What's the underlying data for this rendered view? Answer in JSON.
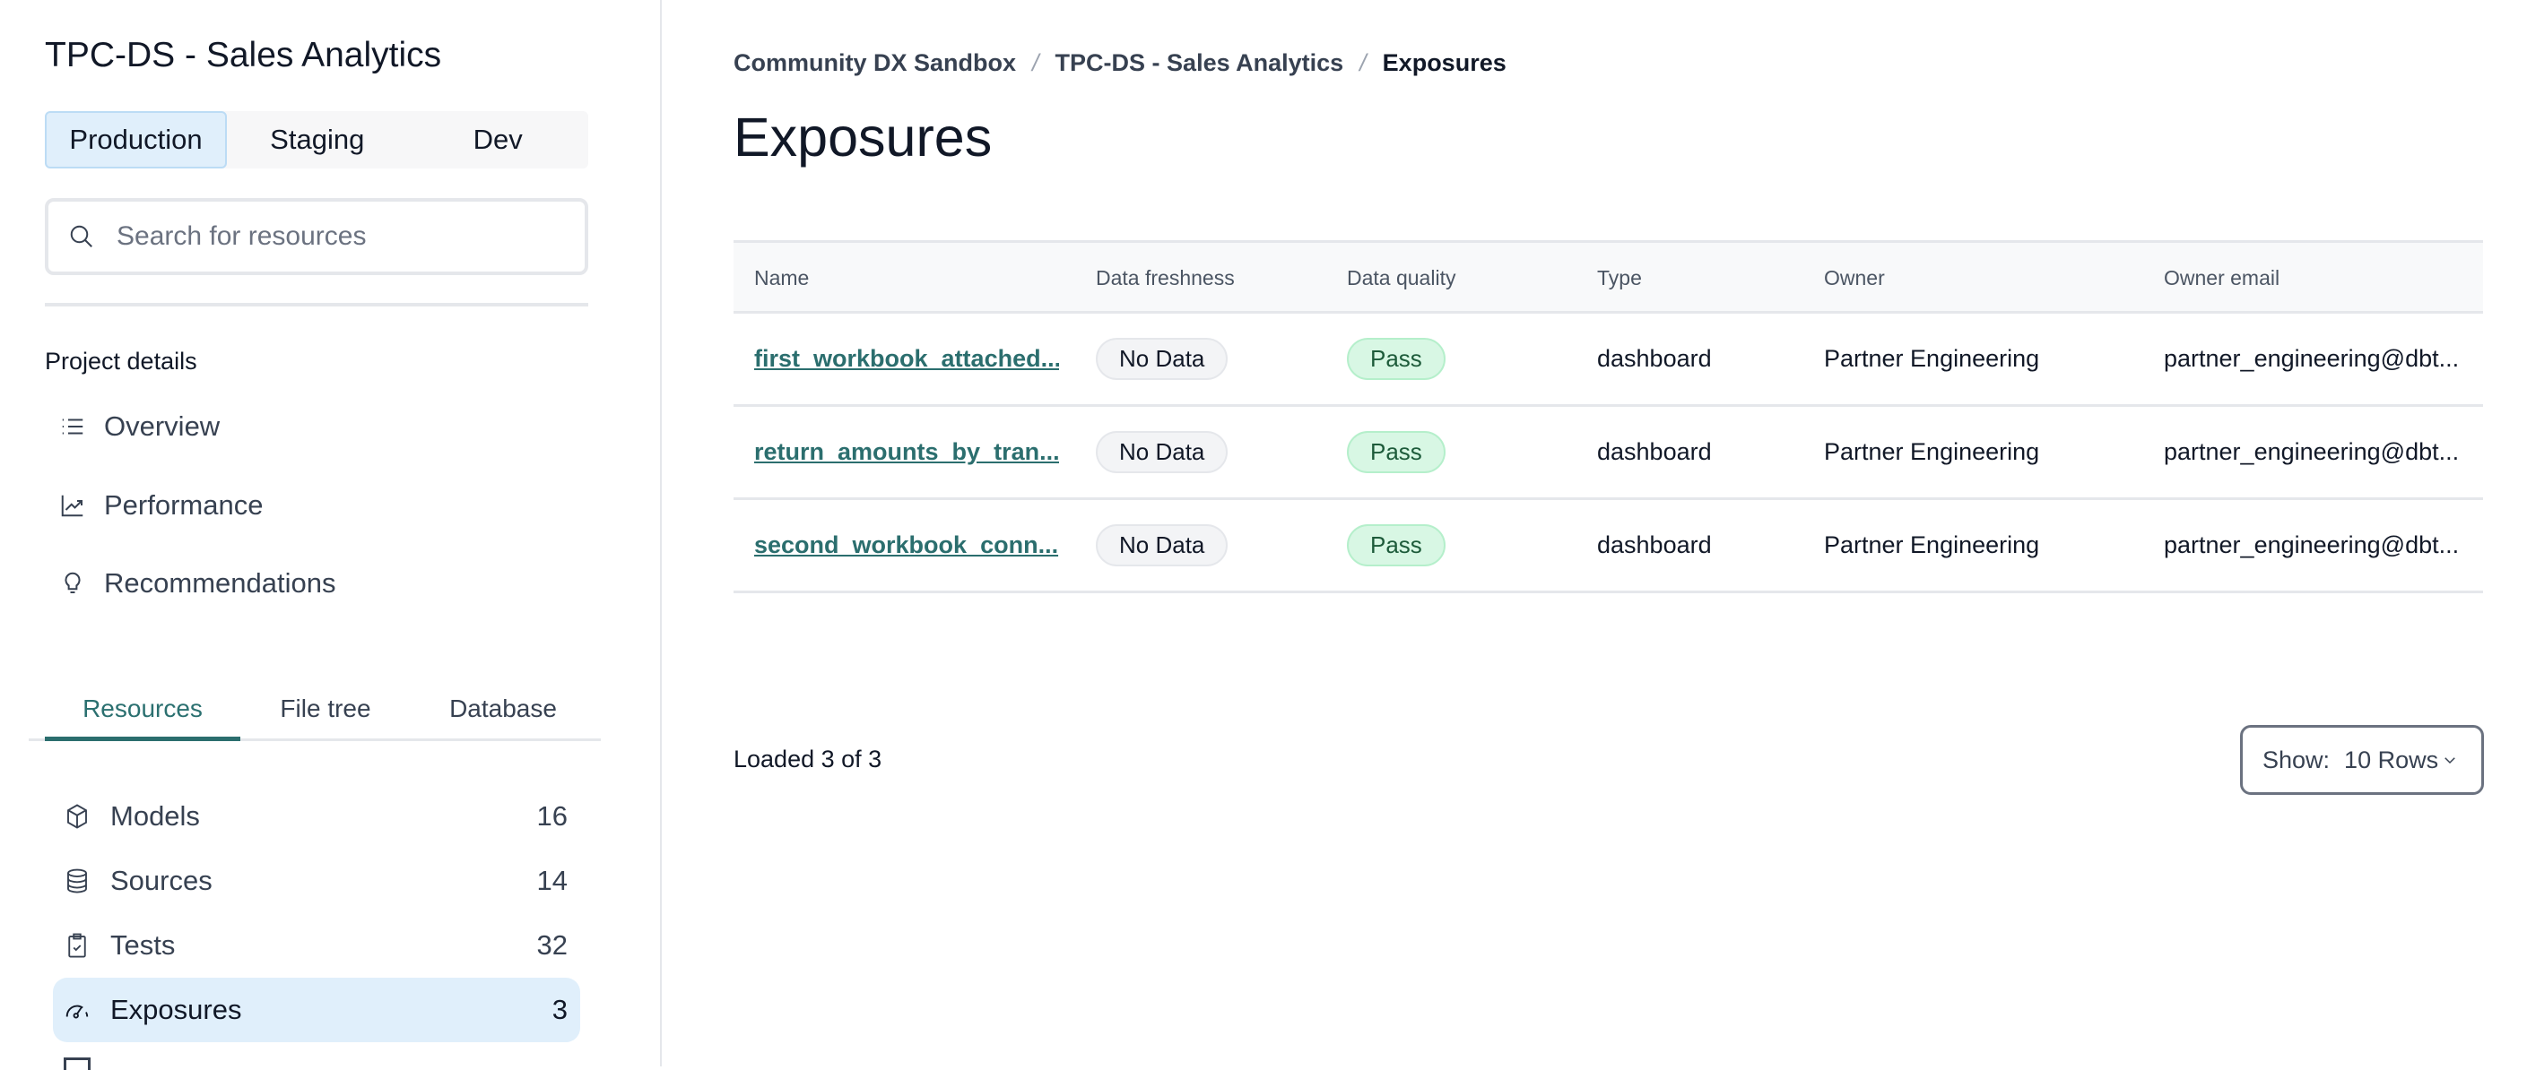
{
  "sidebar": {
    "project_title": "TPC-DS - Sales Analytics",
    "environments": [
      "Production",
      "Staging",
      "Dev"
    ],
    "active_environment": "Production",
    "search": {
      "placeholder": "Search for resources",
      "value": ""
    },
    "project_details_label": "Project details",
    "project_nav": [
      {
        "label": "Overview",
        "icon": "list-icon"
      },
      {
        "label": "Performance",
        "icon": "chart-line-icon"
      },
      {
        "label": "Recommendations",
        "icon": "lightbulb-icon"
      }
    ],
    "tabs": [
      "Resources",
      "File tree",
      "Database"
    ],
    "active_tab": "Resources",
    "resources": [
      {
        "label": "Models",
        "count": "16",
        "icon": "cube-icon"
      },
      {
        "label": "Sources",
        "count": "14",
        "icon": "database-icon"
      },
      {
        "label": "Tests",
        "count": "32",
        "icon": "clipboard-check-icon"
      },
      {
        "label": "Exposures",
        "count": "3",
        "icon": "gauge-icon",
        "active": true
      }
    ]
  },
  "main": {
    "breadcrumb": [
      "Community DX Sandbox",
      "TPC-DS - Sales Analytics",
      "Exposures"
    ],
    "title": "Exposures",
    "table": {
      "columns": [
        "Name",
        "Data freshness",
        "Data quality",
        "Type",
        "Owner",
        "Owner email"
      ],
      "rows": [
        {
          "name": "first_workbook_attached...",
          "freshness": "No Data",
          "quality": "Pass",
          "type": "dashboard",
          "owner": "Partner Engineering",
          "email": "partner_engineering@dbt..."
        },
        {
          "name": "return_amounts_by_tran...",
          "freshness": "No Data",
          "quality": "Pass",
          "type": "dashboard",
          "owner": "Partner Engineering",
          "email": "partner_engineering@dbt..."
        },
        {
          "name": "second_workbook_conn...",
          "freshness": "No Data",
          "quality": "Pass",
          "type": "dashboard",
          "owner": "Partner Engineering",
          "email": "partner_engineering@dbt..."
        }
      ]
    },
    "loaded_text": "Loaded 3 of 3",
    "show": {
      "label": "Show:",
      "value": "10 Rows"
    }
  },
  "colors": {
    "accent": "#2b6e6e",
    "active_bg": "#e0effb",
    "pass_bg": "#d8f7e4",
    "nodata_bg": "#f3f4f6"
  }
}
